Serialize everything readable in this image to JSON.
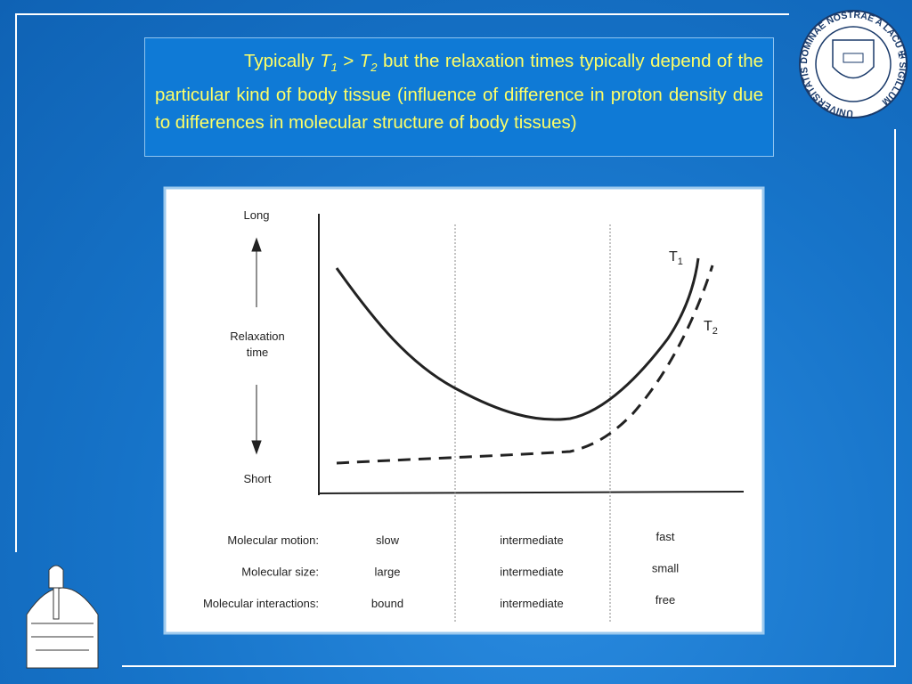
{
  "text_box": {
    "parts": [
      "Typically",
      "T",
      "1",
      ">",
      "T",
      "2",
      "but the relaxation times typically depend of the particular kind of body tissue (influence of difference in proton density due to differences in molecular structure of body tissues)"
    ]
  },
  "figure": {
    "y_axis": {
      "top": "Long",
      "label": [
        "Relaxation",
        "time"
      ],
      "bottom": "Short"
    },
    "curves": [
      {
        "name": "T",
        "sub": "1"
      },
      {
        "name": "T",
        "sub": "2"
      }
    ],
    "rows": [
      {
        "label": "Molecular motion:",
        "cells": [
          "slow",
          "intermediate",
          "fast"
        ]
      },
      {
        "label": "Molecular size:",
        "cells": [
          "large",
          "intermediate",
          "small"
        ]
      },
      {
        "label": "Molecular interactions:",
        "cells": [
          "bound",
          "intermediate",
          "free"
        ]
      }
    ]
  },
  "seal": {
    "text": "UNIVERSITATIS DOMINAE NOSTRAE A LACU ✠ SIGILLUM"
  }
}
